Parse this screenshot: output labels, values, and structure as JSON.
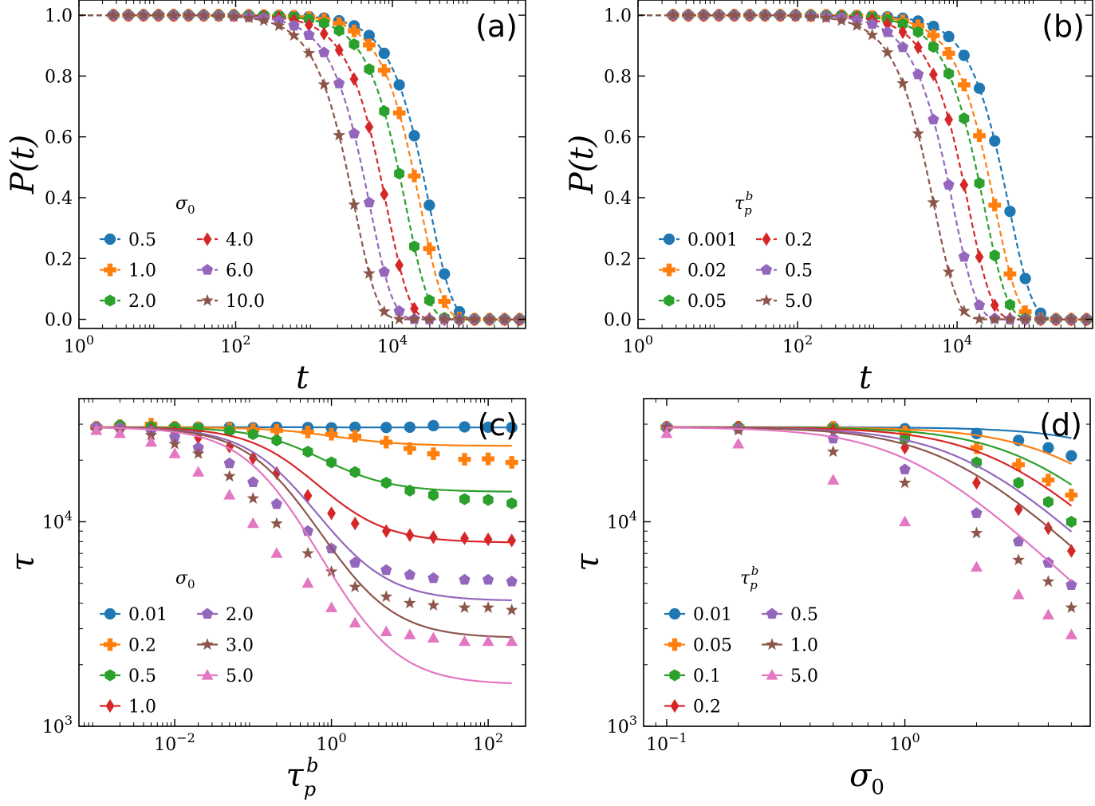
{
  "colors": [
    "#1f77b4",
    "#ff7f0e",
    "#2ca02c",
    "#d62728",
    "#9467bd",
    "#8c564b",
    "#e377c2"
  ],
  "marker_names": [
    "circle",
    "plus",
    "hexagon",
    "diamond",
    "pentagon",
    "star",
    "triangle"
  ],
  "chart_data": [
    {
      "type": "line",
      "panel_label": "(a)",
      "xlabel": "t",
      "ylabel": "P(t)",
      "xscale": "log",
      "yscale": "linear",
      "xlim": [
        1,
        500000
      ],
      "ylim": [
        -0.03,
        1.05
      ],
      "xticks": [
        {
          "value": 1,
          "label": "10^0"
        },
        {
          "value": 100,
          "label": "10^2"
        },
        {
          "value": 10000,
          "label": "10^4"
        }
      ],
      "yticks": [
        {
          "value": 0.0,
          "label": "0.0"
        },
        {
          "value": 0.2,
          "label": "0.2"
        },
        {
          "value": 0.4,
          "label": "0.4"
        },
        {
          "value": 0.6,
          "label": "0.6"
        },
        {
          "value": 0.8,
          "label": "0.8"
        },
        {
          "value": 1.0,
          "label": "1.0"
        }
      ],
      "legend_title": "σ0",
      "legend_position": "lower-left",
      "legend_columns": 2,
      "series": [
        {
          "name": "0.5",
          "tau": 30000
        },
        {
          "name": "1.0",
          "tau": 23000
        },
        {
          "name": "2.0",
          "tau": 15000
        },
        {
          "name": "4.0",
          "tau": 8500
        },
        {
          "name": "6.0",
          "tau": 5200
        },
        {
          "name": "10.0",
          "tau": 3300
        }
      ],
      "curve_shape": "exp(-(t/tau)^1.5)",
      "marker_t_range": [
        2.75,
        420000
      ],
      "marker_count": 28
    },
    {
      "type": "line",
      "panel_label": "(b)",
      "xlabel": "t",
      "ylabel": "P(t)",
      "xscale": "log",
      "yscale": "linear",
      "xlim": [
        1,
        500000
      ],
      "ylim": [
        -0.03,
        1.05
      ],
      "xticks": [
        {
          "value": 1,
          "label": "10^0"
        },
        {
          "value": 100,
          "label": "10^2"
        },
        {
          "value": 10000,
          "label": "10^4"
        }
      ],
      "yticks": [
        {
          "value": 0.0,
          "label": "0.0"
        },
        {
          "value": 0.2,
          "label": "0.2"
        },
        {
          "value": 0.4,
          "label": "0.4"
        },
        {
          "value": 0.6,
          "label": "0.6"
        },
        {
          "value": 0.8,
          "label": "0.8"
        },
        {
          "value": 1.0,
          "label": "1.0"
        }
      ],
      "legend_title": "τpb",
      "legend_position": "lower-left",
      "legend_columns": 2,
      "series": [
        {
          "name": "0.001",
          "tau": 45000
        },
        {
          "name": "0.02",
          "tau": 30000
        },
        {
          "name": "0.05",
          "tau": 22000
        },
        {
          "name": "0.2",
          "tau": 14000
        },
        {
          "name": "0.5",
          "tau": 9000
        },
        {
          "name": "5.0",
          "tau": 5200
        }
      ],
      "curve_shape": "exp(-(t/tau)^1.5)",
      "marker_t_range": [
        2.75,
        420000
      ],
      "marker_count": 28
    },
    {
      "type": "scatter+line",
      "panel_label": "(c)",
      "xlabel": "τpb",
      "ylabel": "τ",
      "xscale": "log",
      "yscale": "log",
      "xlim": [
        0.0006,
        300
      ],
      "ylim": [
        1000,
        40000
      ],
      "xticks": [
        {
          "value": 0.01,
          "label": "10^-2"
        },
        {
          "value": 1,
          "label": "10^0"
        },
        {
          "value": 100,
          "label": "10^2"
        }
      ],
      "yticks": [
        {
          "value": 1000,
          "label": "10^3"
        },
        {
          "value": 10000,
          "label": "10^4"
        }
      ],
      "legend_title": "σ0",
      "legend_position": "lower-left",
      "legend_columns": 2,
      "x": [
        0.001,
        0.002,
        0.005,
        0.01,
        0.02,
        0.05,
        0.1,
        0.2,
        0.5,
        1,
        2,
        5,
        10,
        20,
        50,
        100,
        200
      ],
      "series": [
        {
          "name": "0.01",
          "points": [
            29000,
            29500,
            29000,
            29000,
            29000,
            29000,
            28800,
            29000,
            28900,
            28800,
            29000,
            28900,
            29000,
            29500,
            29100,
            29000,
            28900
          ],
          "fit_low": 29000,
          "fit_high": 28900,
          "fit_x0": 1
        },
        {
          "name": "0.2",
          "points": [
            29000,
            29500,
            30000,
            29000,
            28800,
            28500,
            28200,
            28000,
            27500,
            26800,
            26200,
            24500,
            22800,
            21500,
            20200,
            20300,
            19500
          ],
          "fit_low": 29000,
          "fit_high": 23500,
          "fit_x0": 1
        },
        {
          "name": "0.5",
          "points": [
            29000,
            29600,
            29200,
            28900,
            28600,
            27900,
            26800,
            25000,
            22000,
            19500,
            17500,
            15500,
            14200,
            13500,
            12900,
            12800,
            12300
          ],
          "fit_low": 29000,
          "fit_high": 14000,
          "fit_x0": 0.55
        },
        {
          "name": "1.0",
          "points": [
            28500,
            28600,
            28200,
            27300,
            25800,
            23300,
            20500,
            17300,
            13400,
            11000,
            9800,
            9000,
            8600,
            8400,
            8300,
            8200,
            8100
          ],
          "fit_low": 29000,
          "fit_high": 7900,
          "fit_x0": 0.35
        },
        {
          "name": "2.0",
          "points": [
            29000,
            28800,
            27700,
            26000,
            23000,
            19300,
            15600,
            12200,
            9000,
            7400,
            6300,
            5800,
            5500,
            5300,
            5200,
            5200,
            5100
          ],
          "fit_low": 29000,
          "fit_high": 4100,
          "fit_x0": 0.25
        },
        {
          "name": "3.0",
          "points": [
            28000,
            27800,
            26500,
            24000,
            21500,
            16700,
            13000,
            9800,
            7000,
            5700,
            4800,
            4300,
            4000,
            3900,
            3800,
            3800,
            3700
          ],
          "fit_low": 29000,
          "fit_high": 2700,
          "fit_x0": 0.22
        },
        {
          "name": "5.0",
          "points": [
            28000,
            27000,
            24500,
            21500,
            17500,
            13500,
            9800,
            7000,
            5000,
            3800,
            3200,
            2900,
            2800,
            2700,
            2600,
            2600,
            2600
          ],
          "fit_low": 29000,
          "fit_high": 1600,
          "fit_x0": 0.17
        }
      ]
    },
    {
      "type": "scatter+line",
      "panel_label": "(d)",
      "xlabel": "σ0",
      "ylabel": "τ",
      "xscale": "log",
      "yscale": "log",
      "xlim": [
        0.08,
        6
      ],
      "ylim": [
        1000,
        40000
      ],
      "xticks": [
        {
          "value": 0.1,
          "label": "10^-1"
        },
        {
          "value": 1,
          "label": "10^0"
        }
      ],
      "yticks": [
        {
          "value": 1000,
          "label": "10^3"
        },
        {
          "value": 10000,
          "label": "10^4"
        }
      ],
      "legend_title": "τpb",
      "legend_position": "lower-left",
      "legend_columns": 2,
      "x": [
        0.1,
        0.2,
        0.5,
        1,
        2,
        3,
        4,
        5
      ],
      "series": [
        {
          "name": "0.01",
          "points": [
            29000,
            29000,
            29000,
            28500,
            27000,
            25000,
            23000,
            21000
          ],
          "fit_a": 0.01
        },
        {
          "name": "0.05",
          "points": [
            29000,
            29000,
            29000,
            27500,
            23000,
            19000,
            16000,
            13500
          ],
          "fit_a": 0.045
        },
        {
          "name": "0.1",
          "points": [
            29000,
            29000,
            28500,
            25500,
            19500,
            15500,
            12500,
            10000
          ],
          "fit_a": 0.09
        },
        {
          "name": "0.2",
          "points": [
            29000,
            29000,
            28000,
            23000,
            15500,
            11500,
            9300,
            7200
          ],
          "fit_a": 0.16
        },
        {
          "name": "0.5",
          "points": [
            29000,
            28500,
            25500,
            18000,
            11000,
            8000,
            6300,
            4900
          ],
          "fit_a": 0.3
        },
        {
          "name": "1.0",
          "points": [
            29000,
            28000,
            22000,
            15500,
            8800,
            6500,
            5100,
            3800
          ],
          "fit_a": 0.42
        },
        {
          "name": "5.0",
          "points": [
            27000,
            24000,
            16000,
            10000,
            6000,
            4400,
            3500,
            2800
          ],
          "fit_a": 0.9
        }
      ]
    }
  ]
}
